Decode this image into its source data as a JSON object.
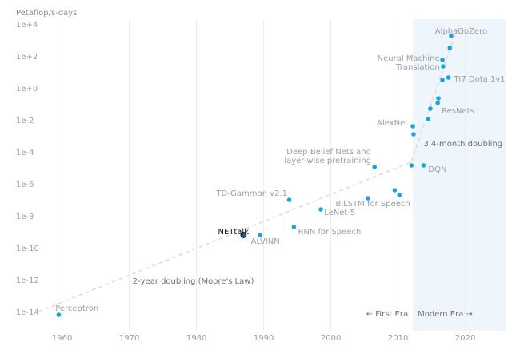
{
  "chart_data": {
    "type": "scatter",
    "ylabel": "Petaflop/s-days",
    "y_scale": "log10",
    "xlim": [
      1956,
      2026
    ],
    "ylim_exponent": [
      -14.5,
      4
    ],
    "x_ticks": [
      1960,
      1970,
      1980,
      1990,
      2000,
      2010,
      2020
    ],
    "y_ticks": [
      {
        "exp": 4,
        "label": "1e+4"
      },
      {
        "exp": 2,
        "label": "1e+2"
      },
      {
        "exp": 0,
        "label": "1e+0"
      },
      {
        "exp": -2,
        "label": "1e-2"
      },
      {
        "exp": -4,
        "label": "1e-4"
      },
      {
        "exp": -6,
        "label": "1e-6"
      },
      {
        "exp": -8,
        "label": "1e-8"
      },
      {
        "exp": -10,
        "label": "1e-10"
      },
      {
        "exp": -12,
        "label": "1e-12"
      },
      {
        "exp": -14,
        "label": "1e-14"
      }
    ],
    "grid": "vertical",
    "point_color": "#1aa3e0",
    "highlight_color": "#0e5fa0",
    "trend_color": "#d8d8d8",
    "shade_color": "#eef6fb",
    "modern_era_start": 2012.2,
    "points": [
      {
        "x": 1959.5,
        "yexp": -14.2
      },
      {
        "x": 1987.0,
        "yexp": -9.2,
        "highlight": true
      },
      {
        "x": 1989.5,
        "yexp": -9.2
      },
      {
        "x": 1993.8,
        "yexp": -7.0
      },
      {
        "x": 1994.5,
        "yexp": -8.7
      },
      {
        "x": 1998.5,
        "yexp": -7.6
      },
      {
        "x": 2005.5,
        "yexp": -6.9
      },
      {
        "x": 2006.5,
        "yexp": -4.95
      },
      {
        "x": 2009.5,
        "yexp": -6.4
      },
      {
        "x": 2010.2,
        "yexp": -6.7
      },
      {
        "x": 2012.0,
        "yexp": -4.85
      },
      {
        "x": 2012.2,
        "yexp": -2.4
      },
      {
        "x": 2012.3,
        "yexp": -2.9
      },
      {
        "x": 2013.8,
        "yexp": -4.85
      },
      {
        "x": 2014.5,
        "yexp": -1.95
      },
      {
        "x": 2014.8,
        "yexp": -1.3
      },
      {
        "x": 2015.9,
        "yexp": -0.95
      },
      {
        "x": 2016.0,
        "yexp": -0.65
      },
      {
        "x": 2016.6,
        "yexp": 0.5
      },
      {
        "x": 2016.7,
        "yexp": 1.35
      },
      {
        "x": 2016.6,
        "yexp": 1.75
      },
      {
        "x": 2017.5,
        "yexp": 0.65
      },
      {
        "x": 2017.7,
        "yexp": 2.5
      },
      {
        "x": 2017.9,
        "yexp": 3.25
      }
    ],
    "annotations": [
      {
        "text": "Perceptron",
        "x": 1959.0,
        "yexp": -13.8,
        "anchor": "start"
      },
      {
        "text": "NETtalk",
        "x": 1983.2,
        "yexp": -9.0,
        "anchor": "start",
        "dark": true
      },
      {
        "text": "ALVINN",
        "x": 1988.1,
        "yexp": -9.6,
        "anchor": "start"
      },
      {
        "text": "TD-Gammon v2.1",
        "x": 1993.5,
        "yexp": -6.6,
        "anchor": "end"
      },
      {
        "text": "RNN for Speech",
        "x": 1995.1,
        "yexp": -9.0,
        "anchor": "start"
      },
      {
        "text": "LeNet-5",
        "x": 1999.0,
        "yexp": -7.8,
        "anchor": "start"
      },
      {
        "text": "BiLSTM for Speech",
        "x": 2000.7,
        "yexp": -7.25,
        "anchor": "start"
      },
      {
        "text": "Deep Belief Nets and",
        "x": 2006.0,
        "yexp": -4.0,
        "anchor": "end"
      },
      {
        "text": "layer-wise pretraining",
        "x": 2006.0,
        "yexp": -4.55,
        "anchor": "end"
      },
      {
        "text": "DQN",
        "x": 2014.5,
        "yexp": -5.1,
        "anchor": "start"
      },
      {
        "text": "AlexNet",
        "x": 2011.5,
        "yexp": -2.2,
        "anchor": "end"
      },
      {
        "text": "3.4-month doubling",
        "x": 2013.8,
        "yexp": -3.5,
        "anchor": "start"
      },
      {
        "text": "ResNets",
        "x": 2016.5,
        "yexp": -1.45,
        "anchor": "start"
      },
      {
        "text": "TI7 Dota 1v1",
        "x": 2018.3,
        "yexp": 0.55,
        "anchor": "start"
      },
      {
        "text": "Neural Machine",
        "x": 2016.2,
        "yexp": 1.85,
        "anchor": "end"
      },
      {
        "text": "Translation",
        "x": 2016.2,
        "yexp": 1.3,
        "anchor": "end"
      },
      {
        "text": "AlphaGoZero",
        "x": 2015.5,
        "yexp": 3.55,
        "anchor": "start"
      },
      {
        "text": "2-year doubling (Moore's Law)",
        "x": 1970.5,
        "yexp": -12.1,
        "anchor": "start"
      }
    ],
    "trends": [
      {
        "x1": 1956.5,
        "y1exp": -14.0,
        "x2": 2012.2,
        "y2exp": -4.6
      },
      {
        "x1": 2012.0,
        "y1exp": -4.6,
        "x2": 2019.0,
        "y2exp": 4.0
      }
    ],
    "era_labels": {
      "first": "←  First Era",
      "modern": "Modern Era  →"
    }
  }
}
